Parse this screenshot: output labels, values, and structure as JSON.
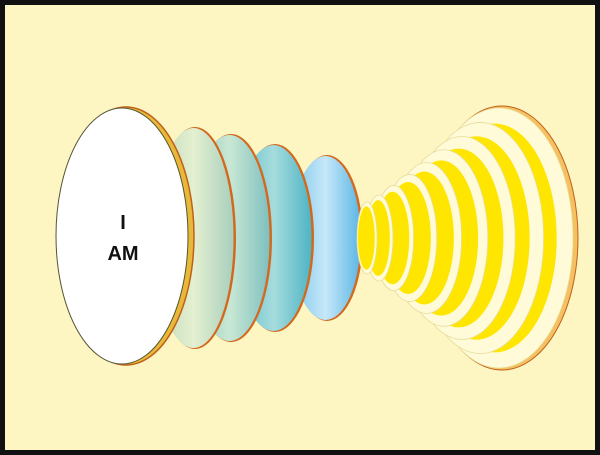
{
  "diagram": {
    "label": {
      "line1": "I",
      "line2": "AM"
    },
    "colors": {
      "background": "#fdf6c3",
      "border": "#111111",
      "ellipse_fill": "#ffffff",
      "ellipse_edge": "#c8a020",
      "disc_rim": "#d2691e",
      "disc_colors": [
        "#cfe6c8",
        "#9fd2c2",
        "#6cc4c9",
        "#7ec8ec"
      ],
      "cone_gold": "#ffe600",
      "cone_cream": "#fffbd8"
    },
    "elements": {
      "left_discs": 4,
      "right_cone_rings": 9
    }
  }
}
